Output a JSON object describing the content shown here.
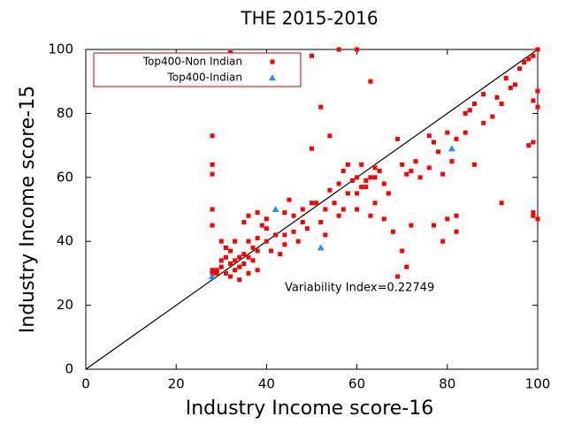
{
  "chart_data": {
    "type": "scatter",
    "title": "THE 2015-2016",
    "x_label": "Industry Income score-16",
    "y_label": "Industry Income score-15",
    "annotation": "Variability Index=0.22749",
    "xlim": [
      0,
      100
    ],
    "ylim": [
      0,
      100
    ],
    "xticks": [
      0,
      20,
      40,
      60,
      80,
      100
    ],
    "yticks": [
      0,
      20,
      40,
      60,
      80,
      100
    ],
    "legend_position": "upper left",
    "series": [
      {
        "name": "Top400-Non Indian",
        "color": "#ff0000",
        "marker": "square",
        "x": [
          28,
          28,
          28,
          28,
          28,
          32,
          50,
          56,
          60,
          52,
          50,
          54,
          63,
          69,
          62,
          67,
          71,
          70,
          69,
          66,
          72,
          68,
          77,
          79,
          80,
          82,
          82,
          86,
          92,
          99,
          99,
          100,
          98,
          99,
          100,
          99,
          100,
          99,
          98,
          97,
          100,
          96,
          95,
          94,
          92,
          91,
          93,
          88,
          86,
          85,
          84,
          88,
          90,
          84,
          80,
          82,
          81,
          76,
          77,
          78,
          76,
          79,
          74,
          73,
          72,
          71,
          70,
          64,
          66,
          65,
          60,
          61,
          58,
          62,
          57,
          56,
          55,
          53,
          54,
          51,
          50,
          48,
          48,
          46,
          47,
          44,
          44,
          43,
          42,
          40,
          41,
          40,
          39,
          38,
          38,
          37,
          37,
          36,
          36,
          35,
          35,
          34,
          34,
          33,
          33,
          32,
          32,
          31,
          31,
          30,
          30,
          29,
          29,
          28,
          28,
          32,
          34,
          36,
          38,
          30,
          31,
          33,
          35,
          36,
          38,
          40,
          44,
          45,
          46,
          49,
          53,
          52,
          60,
          63,
          64,
          56,
          58,
          57,
          59,
          60,
          61,
          63,
          64
        ],
        "y": [
          73,
          64,
          61,
          50,
          45,
          99,
          98,
          100,
          100,
          82,
          69,
          73,
          90,
          72,
          59,
          55,
          32,
          37,
          29,
          47,
          45,
          43,
          45,
          40,
          47,
          43,
          48,
          64,
          52,
          48,
          49,
          47,
          70,
          71,
          87,
          84,
          82,
          98,
          97,
          96,
          100,
          94,
          89,
          88,
          83,
          85,
          91,
          86,
          83,
          81,
          80,
          77,
          79,
          74,
          74,
          72,
          65,
          73,
          71,
          68,
          63,
          61,
          60,
          65,
          62,
          61,
          64,
          60,
          58,
          62,
          55,
          57,
          55,
          57,
          50,
          48,
          52,
          50,
          56,
          52,
          52,
          50,
          46,
          43,
          40,
          42,
          39,
          36,
          42,
          40,
          37,
          44,
          45,
          41,
          37,
          38,
          34,
          35,
          40,
          33,
          36,
          35,
          32,
          34,
          31,
          33,
          37,
          30,
          35,
          32,
          34,
          30,
          31,
          30,
          31,
          29,
          28,
          30,
          31,
          40,
          38,
          40,
          46,
          48,
          49,
          47,
          49,
          53,
          48,
          44,
          42,
          46,
          50,
          48,
          52,
          58,
          64,
          62,
          59,
          60,
          64,
          60,
          63
        ]
      },
      {
        "name": "Top400-Indian",
        "color": "#1e90ff",
        "marker": "triangle",
        "x": [
          28,
          42,
          52,
          81
        ],
        "y": [
          29,
          50,
          38,
          69
        ]
      }
    ]
  }
}
